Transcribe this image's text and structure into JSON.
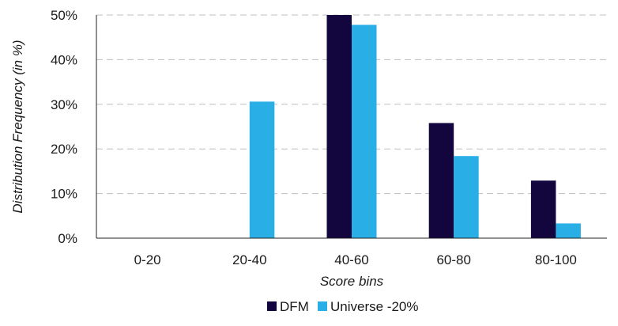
{
  "chart_data": {
    "type": "bar",
    "title": "",
    "xlabel": "Score bins",
    "ylabel": "Distribution Frequency (in %)",
    "categories": [
      "0-20",
      "20-40",
      "40-60",
      "60-80",
      "80-100"
    ],
    "series": [
      {
        "name": "DFM",
        "values": [
          0,
          0,
          50,
          25.8,
          12.9
        ],
        "color": "#13063f"
      },
      {
        "name": "Universe -20%",
        "values": [
          0,
          30.6,
          47.8,
          18.4,
          3.3
        ],
        "color": "#29aee6"
      }
    ],
    "ylim": [
      0,
      50
    ],
    "yticks": [
      0,
      10,
      20,
      30,
      40,
      50
    ],
    "ytick_labels": [
      "0%",
      "10%",
      "20%",
      "30%",
      "40%",
      "50%"
    ],
    "grid": true,
    "legend_position": "bottom-center"
  }
}
